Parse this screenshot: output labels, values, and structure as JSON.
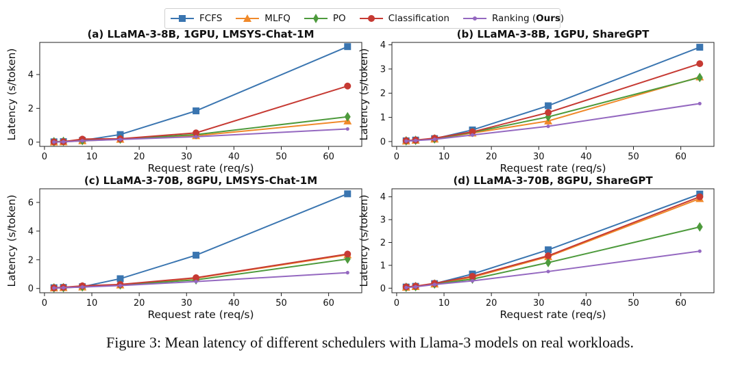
{
  "legend": {
    "fcfs": "FCFS",
    "mlfq": "MLFQ",
    "po": "PO",
    "classification": "Classification",
    "ranking_prefix": "Ranking (",
    "ranking_bold": "Ours",
    "ranking_suffix": ")"
  },
  "colors": {
    "FCFS": "#3a75b0",
    "MLFQ": "#f0892a",
    "PO": "#4d9a3c",
    "Classification": "#c63a33",
    "Ranking": "#9468c0"
  },
  "caption": "Figure 3: Mean latency of different schedulers with Llama-3 models on real workloads.",
  "chart_data": [
    {
      "type": "line",
      "title": "(a) LLaMA-3-8B, 1GPU, LMSYS-Chat-1M",
      "xlabel": "Request rate (req/s)",
      "ylabel": "Latency (s/token)",
      "xlim": [
        -1,
        67
      ],
      "ylim": [
        -0.25,
        5.9
      ],
      "xticks": [
        0,
        10,
        20,
        30,
        40,
        50,
        60
      ],
      "yticks": [
        0,
        2,
        4
      ],
      "x": [
        2,
        4,
        8,
        16,
        32,
        64
      ],
      "series": [
        {
          "name": "FCFS",
          "values": [
            0.02,
            0.03,
            0.1,
            0.45,
            1.85,
            5.65
          ]
        },
        {
          "name": "MLFQ",
          "values": [
            0.01,
            0.02,
            0.08,
            0.17,
            0.38,
            1.25
          ]
        },
        {
          "name": "PO",
          "values": [
            0.03,
            0.05,
            0.1,
            0.18,
            0.45,
            1.5
          ]
        },
        {
          "name": "Classification",
          "values": [
            0.02,
            0.03,
            0.18,
            0.2,
            0.55,
            3.32
          ]
        },
        {
          "name": "Ranking",
          "values": [
            0.01,
            0.02,
            0.08,
            0.16,
            0.32,
            0.78
          ]
        }
      ]
    },
    {
      "type": "line",
      "title": "(b) LLaMA-3-8B, 1GPU, ShareGPT",
      "xlabel": "Request rate (req/s)",
      "ylabel": "Latency (s/token)",
      "xlim": [
        -1,
        67
      ],
      "ylim": [
        -0.2,
        4.1
      ],
      "xticks": [
        0,
        10,
        20,
        30,
        40,
        50,
        60
      ],
      "yticks": [
        0,
        1,
        2,
        3,
        4
      ],
      "x": [
        2,
        4,
        8,
        16,
        32,
        64
      ],
      "series": [
        {
          "name": "FCFS",
          "values": [
            0.03,
            0.06,
            0.12,
            0.48,
            1.48,
            3.9
          ]
        },
        {
          "name": "MLFQ",
          "values": [
            0.02,
            0.05,
            0.1,
            0.35,
            0.85,
            2.67
          ]
        },
        {
          "name": "PO",
          "values": [
            0.03,
            0.05,
            0.11,
            0.38,
            1.02,
            2.65
          ]
        },
        {
          "name": "Classification",
          "values": [
            0.04,
            0.06,
            0.14,
            0.4,
            1.2,
            3.22
          ]
        },
        {
          "name": "Ranking",
          "values": [
            0.02,
            0.04,
            0.09,
            0.27,
            0.63,
            1.57
          ]
        }
      ]
    },
    {
      "type": "line",
      "title": "(c) LLaMA-3-70B, 8GPU, LMSYS-Chat-1M",
      "xlabel": "Request rate (req/s)",
      "ylabel": "Latency (s/token)",
      "xlim": [
        -1,
        67
      ],
      "ylim": [
        -0.3,
        6.95
      ],
      "xticks": [
        0,
        10,
        20,
        30,
        40,
        50,
        60
      ],
      "yticks": [
        0,
        2,
        4,
        6
      ],
      "x": [
        2,
        4,
        8,
        16,
        32,
        64
      ],
      "series": [
        {
          "name": "FCFS",
          "values": [
            0.05,
            0.07,
            0.12,
            0.68,
            2.32,
            6.6
          ]
        },
        {
          "name": "MLFQ",
          "values": [
            0.04,
            0.06,
            0.1,
            0.24,
            0.72,
            2.35
          ]
        },
        {
          "name": "PO",
          "values": [
            0.04,
            0.06,
            0.11,
            0.25,
            0.6,
            2.05
          ]
        },
        {
          "name": "Classification",
          "values": [
            0.05,
            0.08,
            0.18,
            0.28,
            0.75,
            2.4
          ]
        },
        {
          "name": "Ranking",
          "values": [
            0.03,
            0.05,
            0.1,
            0.2,
            0.48,
            1.1
          ]
        }
      ]
    },
    {
      "type": "line",
      "title": "(d) LLaMA-3-70B, 8GPU, ShareGPT",
      "xlabel": "Request rate (req/s)",
      "ylabel": "Latency (s/token)",
      "xlim": [
        -1,
        67
      ],
      "ylim": [
        -0.2,
        4.35
      ],
      "xticks": [
        0,
        10,
        20,
        30,
        40,
        50,
        60
      ],
      "yticks": [
        0,
        1,
        2,
        3,
        4
      ],
      "x": [
        2,
        4,
        8,
        16,
        32,
        64
      ],
      "series": [
        {
          "name": "FCFS",
          "values": [
            0.05,
            0.08,
            0.2,
            0.62,
            1.68,
            4.12
          ]
        },
        {
          "name": "MLFQ",
          "values": [
            0.04,
            0.07,
            0.18,
            0.48,
            1.38,
            3.92
          ]
        },
        {
          "name": "PO",
          "values": [
            0.04,
            0.07,
            0.18,
            0.4,
            1.12,
            2.68
          ]
        },
        {
          "name": "Classification",
          "values": [
            0.06,
            0.09,
            0.21,
            0.52,
            1.42,
            4.0
          ]
        },
        {
          "name": "Ranking",
          "values": [
            0.03,
            0.06,
            0.16,
            0.32,
            0.73,
            1.62
          ]
        }
      ]
    }
  ]
}
